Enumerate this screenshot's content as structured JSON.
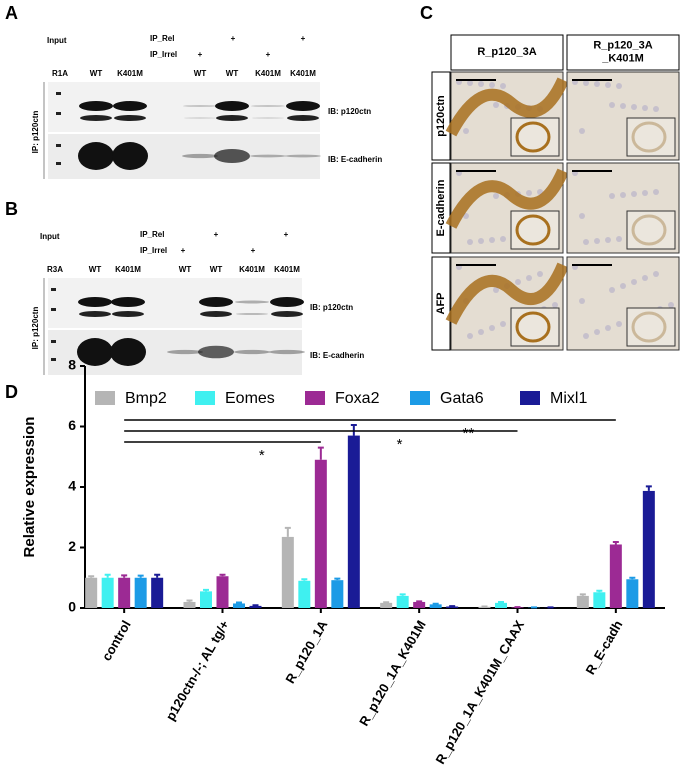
{
  "panel_A": {
    "letter": "A",
    "input": "Input",
    "ip_rel": "IP_Rel",
    "ip_irrel": "IP_Irrel",
    "rel_marks": [
      "+",
      "+"
    ],
    "irrel_marks": [
      "+",
      "+"
    ],
    "lanes": [
      "R1A",
      "WT",
      "K401M",
      "WT",
      "WT",
      "K401M",
      "K401M"
    ],
    "blots": [
      "IB: p120ctn",
      "IB: E-cadherin"
    ],
    "ip": "IP: p120ctn"
  },
  "panel_B": {
    "letter": "B",
    "input": "Input",
    "ip_rel": "IP_Rel",
    "ip_irrel": "IP_Irrel",
    "rel_marks": [
      "+",
      "+"
    ],
    "irrel_marks": [
      "+",
      "+"
    ],
    "lanes": [
      "R3A",
      "WT",
      "K401M",
      "WT",
      "WT",
      "K401M",
      "K401M"
    ],
    "blots": [
      "IB: p120ctn",
      "IB: E-cadherin"
    ],
    "ip": "IP: p120ctn"
  },
  "panel_C": {
    "letter": "C",
    "columns": [
      [
        "R_p120_3A"
      ],
      [
        "R_p120_3A",
        "_K401M"
      ]
    ],
    "rows": [
      "p120ctn",
      "E-cadherin",
      "AFP"
    ]
  },
  "chart_data": {
    "type": "bar",
    "panel_label": "D",
    "y_label": "Relative expression",
    "categories": [
      "control",
      "p120ctn-/-; AL tg/+",
      "R_p120_1A",
      "R_p120_1A_K401M",
      "R_p120_1A_K401M_CAAX",
      "R_E-cadh"
    ],
    "series": [
      {
        "name": "Bmp2",
        "color": "#b5b5b5",
        "values": [
          1.0,
          0.2,
          2.35,
          0.17,
          0.04,
          0.4
        ],
        "errors": [
          0.05,
          0.05,
          0.3,
          0.02,
          0.01,
          0.05
        ]
      },
      {
        "name": "Eomes",
        "color": "#3ff0f0",
        "values": [
          1.0,
          0.55,
          0.9,
          0.4,
          0.17,
          0.52
        ],
        "errors": [
          0.1,
          0.05,
          0.05,
          0.05,
          0.03,
          0.05
        ]
      },
      {
        "name": "Foxa2",
        "color": "#9c2a94",
        "values": [
          1.0,
          1.05,
          4.9,
          0.2,
          0.02,
          2.1
        ],
        "errors": [
          0.08,
          0.05,
          0.4,
          0.02,
          0.01,
          0.08
        ]
      },
      {
        "name": "Gata6",
        "color": "#1c9be6",
        "values": [
          1.0,
          0.15,
          0.92,
          0.12,
          0.01,
          0.95
        ],
        "errors": [
          0.07,
          0.03,
          0.05,
          0.02,
          0.01,
          0.05
        ]
      },
      {
        "name": "Mixl1",
        "color": "#1a1b96",
        "values": [
          1.0,
          0.07,
          5.7,
          0.05,
          0.01,
          3.87
        ],
        "errors": [
          0.1,
          0.02,
          0.35,
          0.01,
          0.01,
          0.15
        ]
      }
    ],
    "ylim": [
      0,
      8
    ],
    "yticks": [
      0,
      2,
      4,
      6,
      8
    ],
    "annotations": [
      {
        "text": "**",
        "from": 0,
        "to": 5
      },
      {
        "text": "*",
        "from": 0,
        "to": 4
      },
      {
        "text": "*",
        "from": 0,
        "to": 2
      }
    ]
  }
}
